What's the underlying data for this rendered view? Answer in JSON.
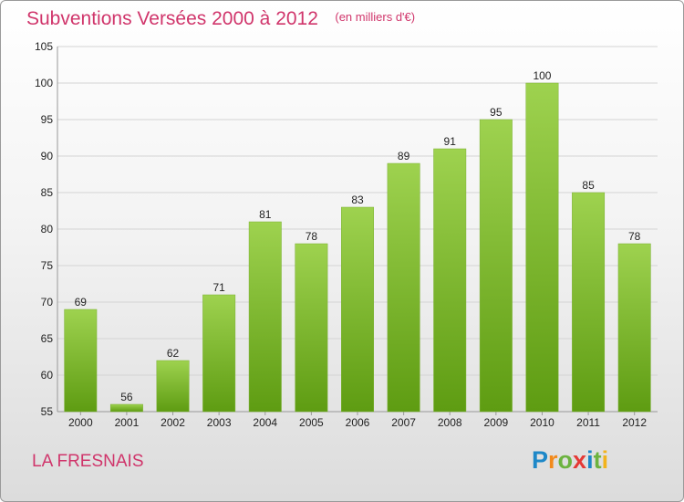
{
  "chart_data": {
    "type": "bar",
    "title": "Subventions Versées 2000 à 2012",
    "subtitle": "(en milliers d'€)",
    "categories": [
      "2000",
      "2001",
      "2002",
      "2003",
      "2004",
      "2005",
      "2006",
      "2007",
      "2008",
      "2009",
      "2010",
      "2011",
      "2012"
    ],
    "values": [
      69,
      56,
      62,
      71,
      81,
      78,
      83,
      89,
      91,
      95,
      100,
      85,
      78
    ],
    "data_labels": [
      "69",
      "56",
      "62",
      "71",
      "81",
      "78",
      "83",
      "89",
      "91",
      "95",
      "100",
      "85",
      "78"
    ],
    "ylim": [
      55,
      105
    ],
    "yticks": [
      55,
      60,
      65,
      70,
      75,
      80,
      85,
      90,
      95,
      100,
      105
    ],
    "grid": true,
    "bar_colors": {
      "top": "#9ed24f",
      "bottom": "#5e9c12"
    }
  },
  "footer": {
    "town": "LA FRESNAIS",
    "logo_letters": [
      {
        "ch": "P",
        "color": "#1e88c8"
      },
      {
        "ch": "r",
        "color": "#f28a1c"
      },
      {
        "ch": "o",
        "color": "#6cb33f"
      },
      {
        "ch": "x",
        "color": "#e53935"
      },
      {
        "ch": "i",
        "color": "#1e88c8"
      },
      {
        "ch": "t",
        "color": "#6cb33f"
      },
      {
        "ch": "i",
        "color": "#f2b31c"
      }
    ]
  }
}
